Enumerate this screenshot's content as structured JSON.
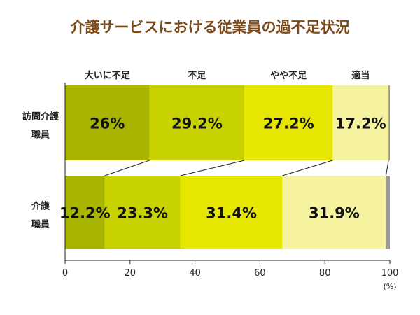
{
  "chart_data": {
    "type": "bar",
    "stacked": true,
    "orientation": "horizontal",
    "title": "介護サービスにおける従業員の過不足状況",
    "categories": [
      "訪問介護職員",
      "介護職員"
    ],
    "category_labels": [
      [
        "訪問介護",
        "職員"
      ],
      [
        "介護",
        "職員"
      ]
    ],
    "series": [
      {
        "name": "大いに不足",
        "color": "#a8b400",
        "values": [
          26,
          12.2
        ],
        "labels": [
          "26%",
          "12.2%"
        ]
      },
      {
        "name": "不足",
        "color": "#c8d200",
        "values": [
          29.2,
          23.3
        ],
        "labels": [
          "29.2%",
          "23.3%"
        ]
      },
      {
        "name": "やや不足",
        "color": "#e6e600",
        "values": [
          27.2,
          31.4
        ],
        "labels": [
          "27.2%",
          "31.4%"
        ]
      },
      {
        "name": "適当",
        "color": "#f5f3a0",
        "values": [
          17.2,
          31.9
        ],
        "labels": [
          "17.2%",
          "31.9%"
        ]
      }
    ],
    "remainder_color": "#999999",
    "xlim": [
      0,
      100
    ],
    "xticks": [
      "0",
      "20",
      "40",
      "60",
      "80",
      "100"
    ],
    "xunit": "(%)",
    "legend": "top",
    "grid": false
  }
}
